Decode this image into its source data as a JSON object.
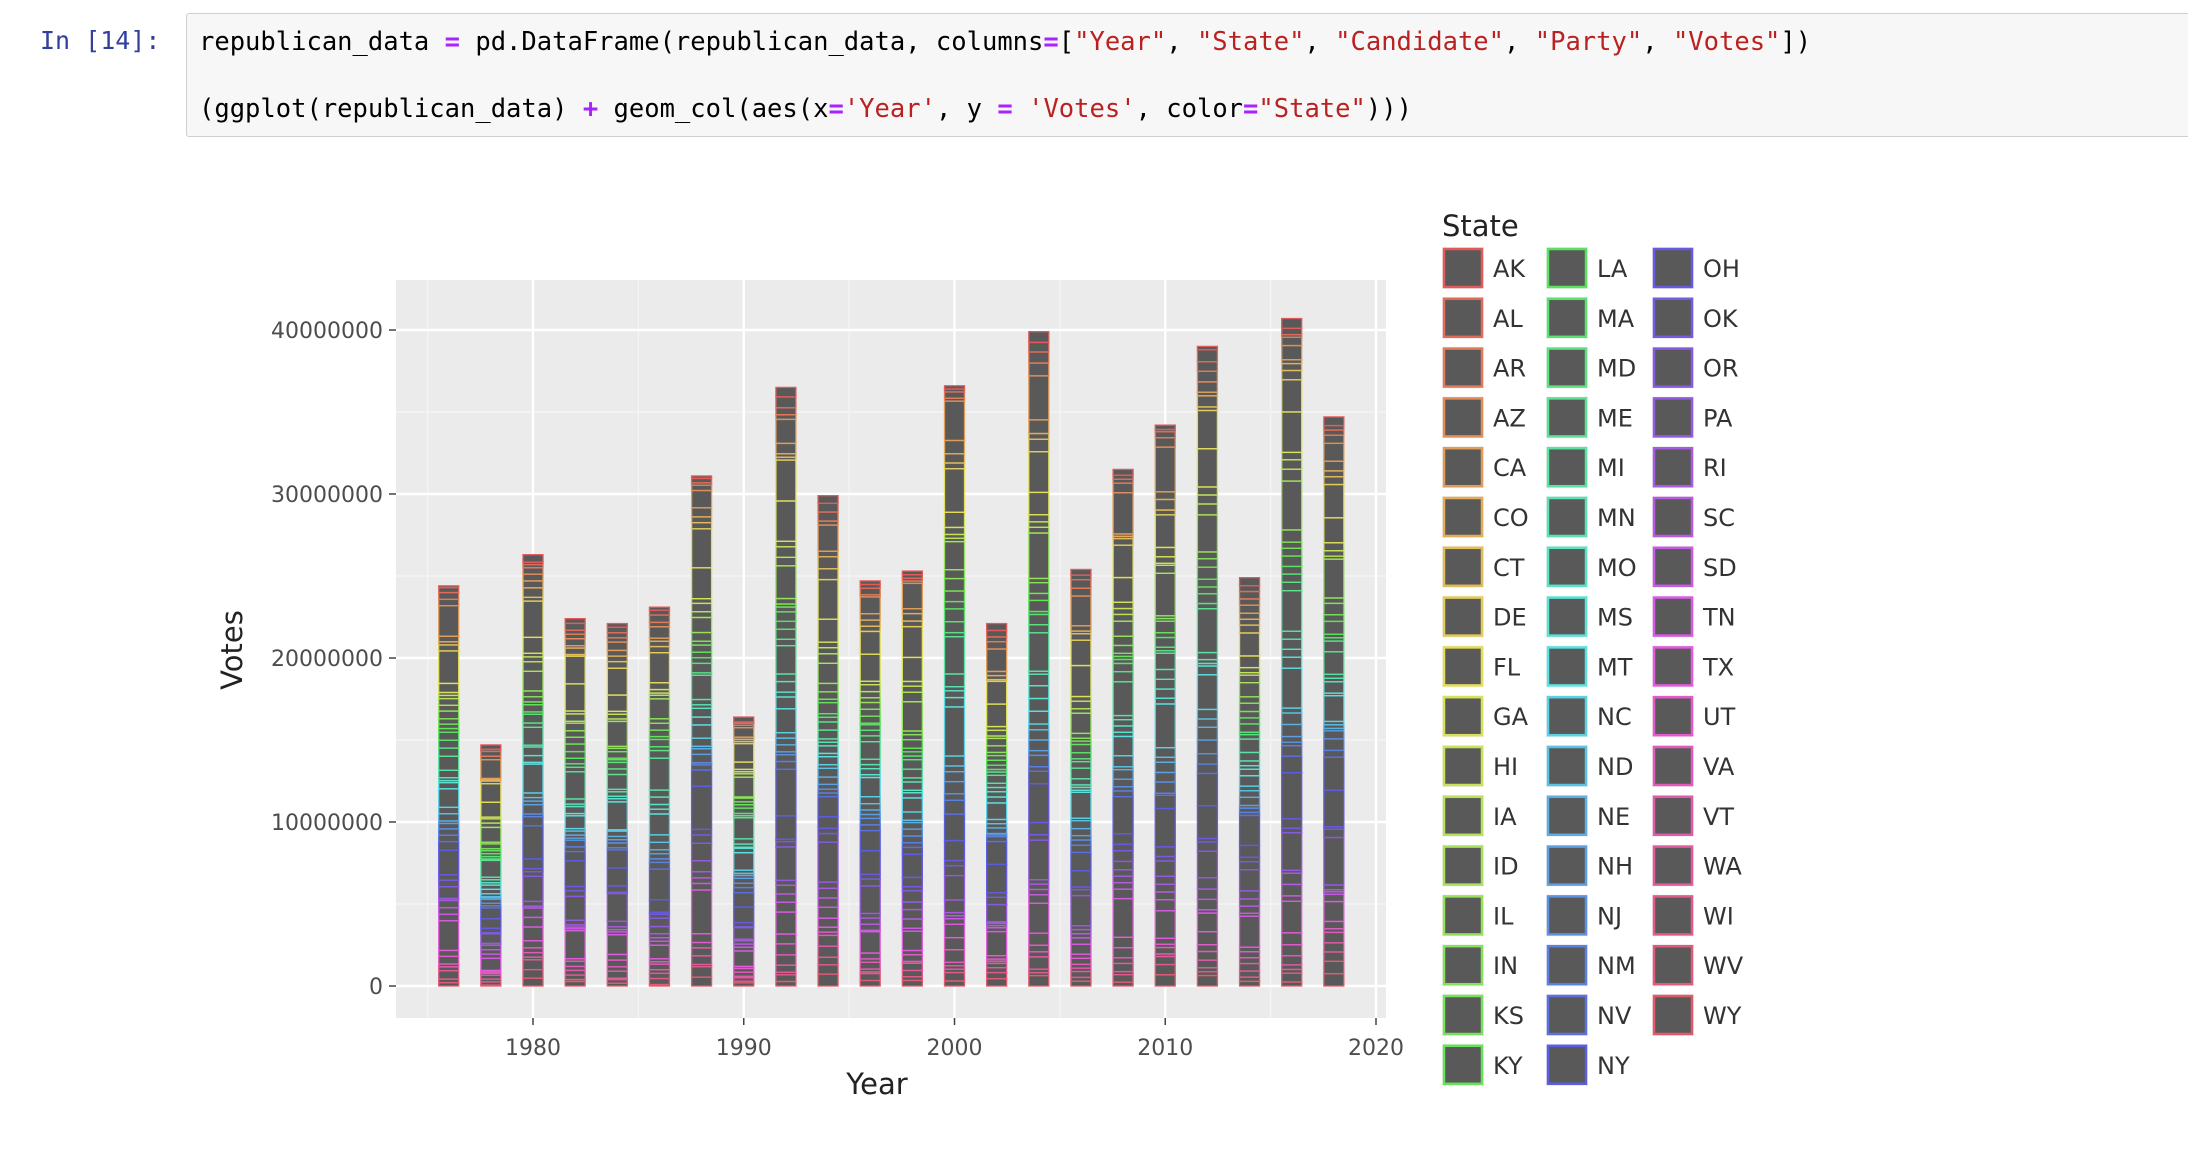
{
  "cell": {
    "prompt": "In [14]:",
    "line1": [
      {
        "t": "republican_data ",
        "c": ""
      },
      {
        "t": "=",
        "c": "op"
      },
      {
        "t": " pd.DataFrame(republican_data, columns",
        "c": ""
      },
      {
        "t": "=",
        "c": "op"
      },
      {
        "t": "[",
        "c": ""
      },
      {
        "t": "\"Year\"",
        "c": "str"
      },
      {
        "t": ", ",
        "c": ""
      },
      {
        "t": "\"State\"",
        "c": "str"
      },
      {
        "t": ", ",
        "c": ""
      },
      {
        "t": "\"Candidate\"",
        "c": "str"
      },
      {
        "t": ", ",
        "c": ""
      },
      {
        "t": "\"Party\"",
        "c": "str"
      },
      {
        "t": ", ",
        "c": ""
      },
      {
        "t": "\"Votes\"",
        "c": "str"
      },
      {
        "t": "])",
        "c": ""
      }
    ],
    "line2": [
      {
        "t": "(ggplot(republican_data) ",
        "c": ""
      },
      {
        "t": "+",
        "c": "op"
      },
      {
        "t": " geom_col(aes(x",
        "c": ""
      },
      {
        "t": "=",
        "c": "op"
      },
      {
        "t": "'Year'",
        "c": "str"
      },
      {
        "t": ", y ",
        "c": ""
      },
      {
        "t": "=",
        "c": "op"
      },
      {
        "t": " ",
        "c": ""
      },
      {
        "t": "'Votes'",
        "c": "str"
      },
      {
        "t": ", color",
        "c": ""
      },
      {
        "t": "=",
        "c": "op"
      },
      {
        "t": "\"State\"",
        "c": "str"
      },
      {
        "t": ")))",
        "c": ""
      }
    ]
  },
  "chart_data": {
    "type": "bar",
    "stacked": true,
    "xlabel": "Year",
    "ylabel": "Votes",
    "xticks": [
      "1980",
      "1990",
      "2000",
      "2010",
      "2020"
    ],
    "yticks": [
      "0",
      "10000000",
      "20000000",
      "30000000",
      "40000000"
    ],
    "xlim": [
      1974,
      2020
    ],
    "ylim": [
      0,
      43000000
    ],
    "x": [
      1976,
      1978,
      1980,
      1982,
      1984,
      1986,
      1988,
      1990,
      1992,
      1994,
      1996,
      1998,
      2000,
      2002,
      2004,
      2006,
      2008,
      2010,
      2012,
      2014,
      2016,
      2018
    ],
    "values": [
      24400000,
      14700000,
      26300000,
      22400000,
      22100000,
      23100000,
      31100000,
      16400000,
      36500000,
      29900000,
      24700000,
      25300000,
      36600000,
      22100000,
      39900000,
      25400000,
      31500000,
      34200000,
      39000000,
      24900000,
      40700000,
      34700000
    ],
    "fill_color": "#595959",
    "panel_color": "#ebebeb",
    "grid": true,
    "legend": {
      "title": "State",
      "placement": "right",
      "columns": 3,
      "entries": [
        "AK",
        "AL",
        "AR",
        "AZ",
        "CA",
        "CO",
        "CT",
        "DE",
        "FL",
        "GA",
        "HI",
        "IA",
        "ID",
        "IL",
        "IN",
        "KS",
        "KY",
        "LA",
        "MA",
        "MD",
        "ME",
        "MI",
        "MN",
        "MO",
        "MS",
        "MT",
        "NC",
        "ND",
        "NE",
        "NH",
        "NJ",
        "NM",
        "NV",
        "NY",
        "OH",
        "OK",
        "OR",
        "PA",
        "RI",
        "SC",
        "SD",
        "TN",
        "TX",
        "UT",
        "VA",
        "VT",
        "WA",
        "WI",
        "WV",
        "WY"
      ]
    }
  }
}
